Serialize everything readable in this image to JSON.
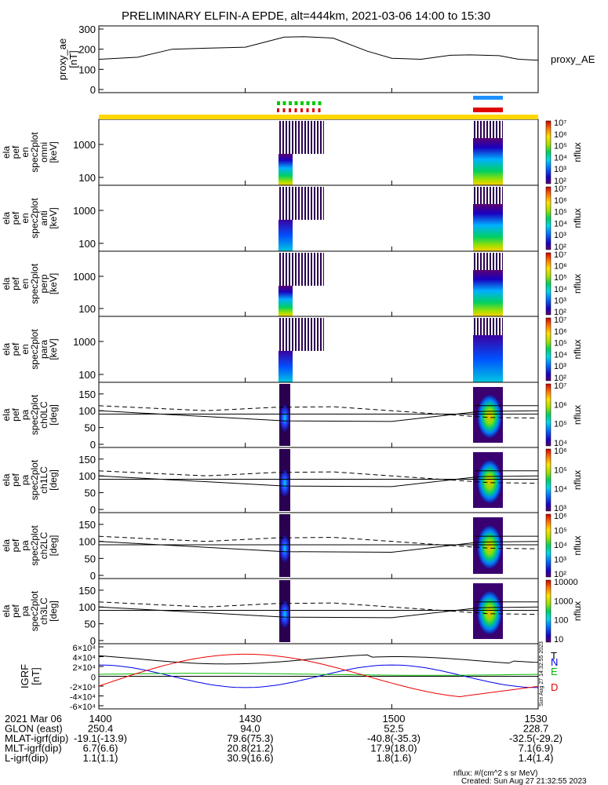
{
  "title": "PRELIMINARY ELFIN-A EPDE, alt=444km, 2021-03-06 14:00 to 15:30",
  "chart_data": [
    {
      "type": "line",
      "ylabel_lines": [
        "proxy_ae",
        "[nT]"
      ],
      "legend": "proxy_AE",
      "yticks": [
        "0",
        "100",
        "200",
        "300"
      ],
      "ylim": [
        0,
        300
      ],
      "x_minutes": [
        0,
        8,
        15,
        22,
        30,
        38,
        42,
        48,
        55,
        60,
        66,
        72,
        76,
        82,
        86,
        90
      ],
      "values": [
        150,
        160,
        200,
        205,
        210,
        260,
        262,
        255,
        190,
        155,
        150,
        170,
        172,
        168,
        150,
        145
      ]
    },
    {
      "type": "heatmap",
      "ylabel_lines": [
        "ela",
        "pef",
        "en",
        "spec2plot",
        "omni",
        "[keV]"
      ],
      "yticks": [
        "100",
        "1000"
      ],
      "colorbar_label": "nflux",
      "colorbar_ticks": [
        "10²",
        "10³",
        "10⁴",
        "10⁵",
        "10⁶",
        "10⁷"
      ]
    },
    {
      "type": "heatmap",
      "ylabel_lines": [
        "ela",
        "pef",
        "en",
        "spec2plot",
        "anti",
        "[keV]"
      ],
      "yticks": [
        "100",
        "1000"
      ],
      "colorbar_label": "nflux",
      "colorbar_ticks": [
        "10²",
        "10³",
        "10⁴",
        "10⁵",
        "10⁶",
        "10⁷"
      ]
    },
    {
      "type": "heatmap",
      "ylabel_lines": [
        "ela",
        "pef",
        "en",
        "spec2plot",
        "perp",
        "[keV]"
      ],
      "yticks": [
        "100",
        "1000"
      ],
      "colorbar_label": "nflux",
      "colorbar_ticks": [
        "10²",
        "10³",
        "10⁴",
        "10⁵",
        "10⁶",
        "10⁷"
      ]
    },
    {
      "type": "heatmap",
      "ylabel_lines": [
        "ela",
        "pef",
        "en",
        "spec2plot",
        "para",
        "[keV]"
      ],
      "yticks": [
        "100",
        "1000"
      ],
      "colorbar_label": "nflux",
      "colorbar_ticks": [
        "10²",
        "10³",
        "10⁴",
        "10⁵",
        "10⁶",
        "10⁷"
      ]
    },
    {
      "type": "heatmap",
      "ylabel_lines": [
        "ela",
        "pef",
        "pa",
        "spec2plot",
        "ch0LC",
        "[deg]"
      ],
      "yticks": [
        "0",
        "50",
        "100",
        "150"
      ],
      "colorbar_label": "nflux",
      "colorbar_ticks": [
        "10⁴",
        "10⁵",
        "10⁶",
        "10⁷"
      ]
    },
    {
      "type": "heatmap",
      "ylabel_lines": [
        "ela",
        "pef",
        "pa",
        "spec2plot",
        "ch1LC",
        "[deg]"
      ],
      "yticks": [
        "0",
        "50",
        "100",
        "150"
      ],
      "colorbar_label": "nflux",
      "colorbar_ticks": [
        "10³",
        "10⁴",
        "10⁵",
        "10⁶"
      ]
    },
    {
      "type": "heatmap",
      "ylabel_lines": [
        "ela",
        "pef",
        "pa",
        "spec2plot",
        "ch2LC",
        "[deg]"
      ],
      "yticks": [
        "0",
        "50",
        "100",
        "150"
      ],
      "colorbar_label": "nflux",
      "colorbar_ticks": [
        "10²",
        "10³",
        "10⁴",
        "10⁵",
        "10⁶"
      ]
    },
    {
      "type": "heatmap",
      "ylabel_lines": [
        "ela",
        "pef",
        "pa",
        "spec2plot",
        "ch3LC",
        "[deg]"
      ],
      "yticks": [
        "0",
        "50",
        "100",
        "150"
      ],
      "colorbar_label": "nflux",
      "colorbar_ticks": [
        "10",
        "100",
        "1000",
        "10000"
      ]
    },
    {
      "type": "line",
      "ylabel_lines": [
        "IGRF",
        "[nT]"
      ],
      "yticks": [
        "-6×10⁴",
        "-4×10⁴",
        "-2×10⁴",
        "0",
        "2×10⁴",
        "4×10⁴",
        "6×10⁴"
      ],
      "ylim": [
        -60000,
        60000
      ],
      "legend": [
        "T",
        "N",
        "E",
        "D"
      ],
      "colors": {
        "T": "#000000",
        "N": "#0000ee",
        "E": "#00bb00",
        "D": "#ee0000"
      }
    }
  ],
  "xaxis": {
    "rows": [
      {
        "label": "2021 Mar 06",
        "values": [
          "1400",
          "1430",
          "1500",
          "1530"
        ]
      },
      {
        "label": "GLON (east)",
        "values": [
          "250.4",
          "94.0",
          "52.5",
          "228.7"
        ]
      },
      {
        "label": "MLAT-igrf(dip)",
        "values": [
          "-19.1(-13.9)",
          "79.6(75.3)",
          "-40.8(-35.3)",
          "-32.5(-29.2)"
        ]
      },
      {
        "label": "MLT-igrf(dip)",
        "values": [
          "6.7(6.6)",
          "20.8(21.2)",
          "17.9(18.0)",
          "7.1(6.9)"
        ]
      },
      {
        "label": "L-igrf(dip)",
        "values": [
          "1.1(1.1)",
          "30.9(16.6)",
          "1.8(1.6)",
          "1.4(1.4)"
        ]
      }
    ]
  },
  "footer": {
    "units": "nflux: #/(cm^2 s sr MeV)",
    "created": "Created: Sun Aug 27 21:32:55 2023",
    "side_stamp": "Sun Aug 27 14:32:55 2023"
  },
  "colors": {
    "sci_zone_bar": "#ffd700",
    "blue_bar": "#1e90ff",
    "red_bar": "#e00000",
    "green_ticks": "#00cc00"
  }
}
